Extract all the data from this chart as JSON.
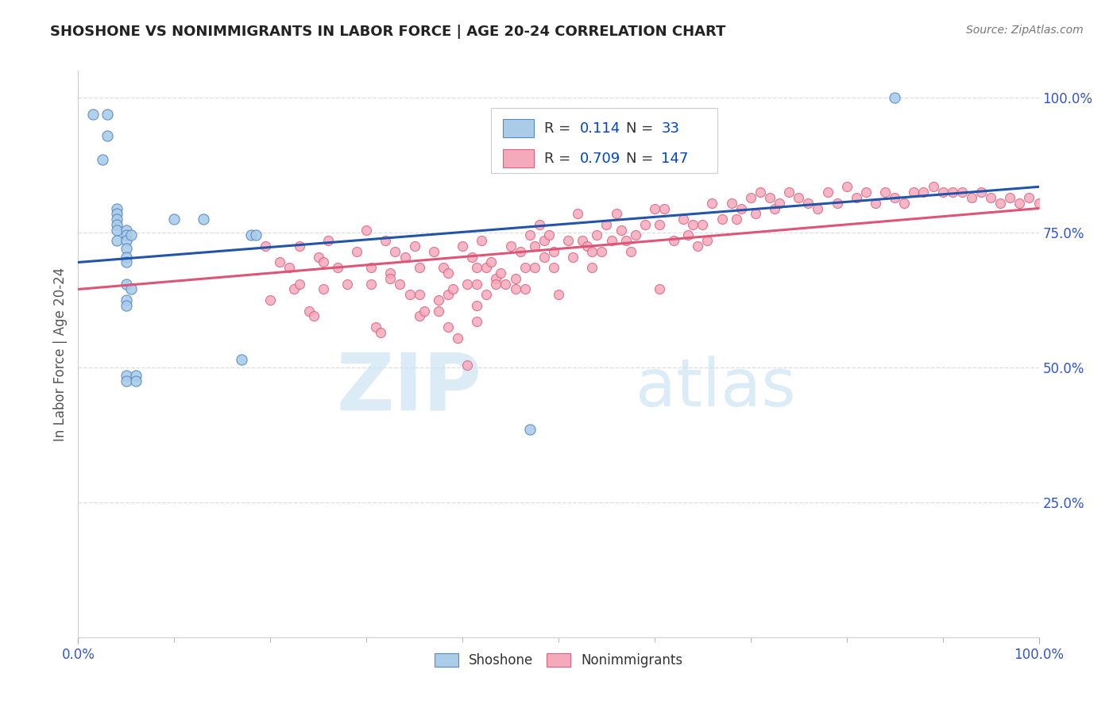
{
  "title": "SHOSHONE VS NONIMMIGRANTS IN LABOR FORCE | AGE 20-24 CORRELATION CHART",
  "source": "Source: ZipAtlas.com",
  "ylabel": "In Labor Force | Age 20-24",
  "xlim": [
    0.0,
    1.0
  ],
  "ylim": [
    0.0,
    1.05
  ],
  "x_tick_labels": [
    "0.0%",
    "100.0%"
  ],
  "y_tick_labels": [
    "25.0%",
    "50.0%",
    "75.0%",
    "100.0%"
  ],
  "y_tick_positions": [
    0.25,
    0.5,
    0.75,
    1.0
  ],
  "background_color": "#ffffff",
  "watermark_zip": "ZIP",
  "watermark_atlas": "atlas",
  "shoshone_color": "#aacce8",
  "shoshone_edge_color": "#5588cc",
  "nonimmigrant_color": "#f4aabb",
  "nonimmigrant_edge_color": "#e06080",
  "shoshone_line_color": "#2255aa",
  "nonimmigrant_line_color": "#dd5577",
  "shoshone_line": {
    "x0": 0.0,
    "y0": 0.695,
    "x1": 1.0,
    "y1": 0.835
  },
  "nonimmigrant_line": {
    "x0": 0.0,
    "y0": 0.645,
    "x1": 1.0,
    "y1": 0.795
  },
  "right_y_tick_color": "#3355cc",
  "grid_color": "#dddddd",
  "shoshone_points": [
    [
      0.015,
      0.97
    ],
    [
      0.025,
      0.885
    ],
    [
      0.03,
      0.97
    ],
    [
      0.03,
      0.93
    ],
    [
      0.04,
      0.795
    ],
    [
      0.04,
      0.785
    ],
    [
      0.04,
      0.775
    ],
    [
      0.04,
      0.765
    ],
    [
      0.04,
      0.755
    ],
    [
      0.04,
      0.735
    ],
    [
      0.05,
      0.755
    ],
    [
      0.05,
      0.745
    ],
    [
      0.05,
      0.735
    ],
    [
      0.05,
      0.72
    ],
    [
      0.05,
      0.705
    ],
    [
      0.05,
      0.695
    ],
    [
      0.05,
      0.655
    ],
    [
      0.05,
      0.625
    ],
    [
      0.05,
      0.615
    ],
    [
      0.05,
      0.485
    ],
    [
      0.05,
      0.475
    ],
    [
      0.055,
      0.745
    ],
    [
      0.055,
      0.645
    ],
    [
      0.06,
      0.485
    ],
    [
      0.06,
      0.475
    ],
    [
      0.1,
      0.775
    ],
    [
      0.13,
      0.775
    ],
    [
      0.17,
      0.515
    ],
    [
      0.18,
      0.745
    ],
    [
      0.185,
      0.745
    ],
    [
      0.47,
      0.385
    ],
    [
      0.85,
      1.0
    ]
  ],
  "nonimmigrant_points": [
    [
      0.195,
      0.725
    ],
    [
      0.2,
      0.625
    ],
    [
      0.21,
      0.695
    ],
    [
      0.22,
      0.685
    ],
    [
      0.225,
      0.645
    ],
    [
      0.23,
      0.725
    ],
    [
      0.23,
      0.655
    ],
    [
      0.24,
      0.605
    ],
    [
      0.245,
      0.595
    ],
    [
      0.25,
      0.705
    ],
    [
      0.255,
      0.695
    ],
    [
      0.255,
      0.645
    ],
    [
      0.26,
      0.735
    ],
    [
      0.27,
      0.685
    ],
    [
      0.28,
      0.655
    ],
    [
      0.29,
      0.715
    ],
    [
      0.3,
      0.755
    ],
    [
      0.305,
      0.685
    ],
    [
      0.305,
      0.655
    ],
    [
      0.31,
      0.575
    ],
    [
      0.315,
      0.565
    ],
    [
      0.32,
      0.735
    ],
    [
      0.325,
      0.675
    ],
    [
      0.325,
      0.665
    ],
    [
      0.33,
      0.715
    ],
    [
      0.335,
      0.655
    ],
    [
      0.34,
      0.705
    ],
    [
      0.345,
      0.635
    ],
    [
      0.35,
      0.725
    ],
    [
      0.355,
      0.685
    ],
    [
      0.355,
      0.635
    ],
    [
      0.355,
      0.595
    ],
    [
      0.36,
      0.605
    ],
    [
      0.37,
      0.715
    ],
    [
      0.375,
      0.625
    ],
    [
      0.375,
      0.605
    ],
    [
      0.38,
      0.685
    ],
    [
      0.385,
      0.675
    ],
    [
      0.385,
      0.635
    ],
    [
      0.385,
      0.575
    ],
    [
      0.39,
      0.645
    ],
    [
      0.395,
      0.555
    ],
    [
      0.4,
      0.725
    ],
    [
      0.405,
      0.655
    ],
    [
      0.405,
      0.505
    ],
    [
      0.41,
      0.705
    ],
    [
      0.415,
      0.685
    ],
    [
      0.415,
      0.655
    ],
    [
      0.415,
      0.615
    ],
    [
      0.415,
      0.585
    ],
    [
      0.42,
      0.735
    ],
    [
      0.425,
      0.685
    ],
    [
      0.425,
      0.635
    ],
    [
      0.43,
      0.695
    ],
    [
      0.435,
      0.665
    ],
    [
      0.435,
      0.655
    ],
    [
      0.44,
      0.675
    ],
    [
      0.445,
      0.655
    ],
    [
      0.45,
      0.725
    ],
    [
      0.455,
      0.665
    ],
    [
      0.455,
      0.645
    ],
    [
      0.46,
      0.715
    ],
    [
      0.465,
      0.685
    ],
    [
      0.465,
      0.645
    ],
    [
      0.47,
      0.745
    ],
    [
      0.475,
      0.725
    ],
    [
      0.475,
      0.685
    ],
    [
      0.48,
      0.765
    ],
    [
      0.485,
      0.735
    ],
    [
      0.485,
      0.705
    ],
    [
      0.49,
      0.745
    ],
    [
      0.495,
      0.715
    ],
    [
      0.495,
      0.685
    ],
    [
      0.5,
      0.635
    ],
    [
      0.51,
      0.735
    ],
    [
      0.515,
      0.705
    ],
    [
      0.52,
      0.785
    ],
    [
      0.525,
      0.735
    ],
    [
      0.53,
      0.725
    ],
    [
      0.535,
      0.715
    ],
    [
      0.535,
      0.685
    ],
    [
      0.54,
      0.745
    ],
    [
      0.545,
      0.715
    ],
    [
      0.55,
      0.765
    ],
    [
      0.555,
      0.735
    ],
    [
      0.56,
      0.785
    ],
    [
      0.565,
      0.755
    ],
    [
      0.57,
      0.735
    ],
    [
      0.575,
      0.715
    ],
    [
      0.58,
      0.745
    ],
    [
      0.59,
      0.765
    ],
    [
      0.6,
      0.795
    ],
    [
      0.605,
      0.765
    ],
    [
      0.605,
      0.645
    ],
    [
      0.61,
      0.795
    ],
    [
      0.62,
      0.735
    ],
    [
      0.63,
      0.775
    ],
    [
      0.635,
      0.745
    ],
    [
      0.64,
      0.765
    ],
    [
      0.645,
      0.725
    ],
    [
      0.65,
      0.765
    ],
    [
      0.655,
      0.735
    ],
    [
      0.66,
      0.805
    ],
    [
      0.67,
      0.775
    ],
    [
      0.68,
      0.805
    ],
    [
      0.685,
      0.775
    ],
    [
      0.69,
      0.795
    ],
    [
      0.7,
      0.815
    ],
    [
      0.705,
      0.785
    ],
    [
      0.71,
      0.825
    ],
    [
      0.72,
      0.815
    ],
    [
      0.725,
      0.795
    ],
    [
      0.73,
      0.805
    ],
    [
      0.74,
      0.825
    ],
    [
      0.75,
      0.815
    ],
    [
      0.76,
      0.805
    ],
    [
      0.77,
      0.795
    ],
    [
      0.78,
      0.825
    ],
    [
      0.79,
      0.805
    ],
    [
      0.8,
      0.835
    ],
    [
      0.81,
      0.815
    ],
    [
      0.82,
      0.825
    ],
    [
      0.83,
      0.805
    ],
    [
      0.84,
      0.825
    ],
    [
      0.85,
      0.815
    ],
    [
      0.86,
      0.805
    ],
    [
      0.87,
      0.825
    ],
    [
      0.88,
      0.825
    ],
    [
      0.89,
      0.835
    ],
    [
      0.9,
      0.825
    ],
    [
      0.91,
      0.825
    ],
    [
      0.92,
      0.825
    ],
    [
      0.93,
      0.815
    ],
    [
      0.94,
      0.825
    ],
    [
      0.95,
      0.815
    ],
    [
      0.96,
      0.805
    ],
    [
      0.97,
      0.815
    ],
    [
      0.98,
      0.805
    ],
    [
      0.99,
      0.815
    ],
    [
      1.0,
      0.805
    ]
  ],
  "legend_box_color_blue": "#aacce8",
  "legend_box_color_pink": "#f4aabb",
  "legend_text_black": "#333333",
  "legend_num_color": "#0044cc"
}
